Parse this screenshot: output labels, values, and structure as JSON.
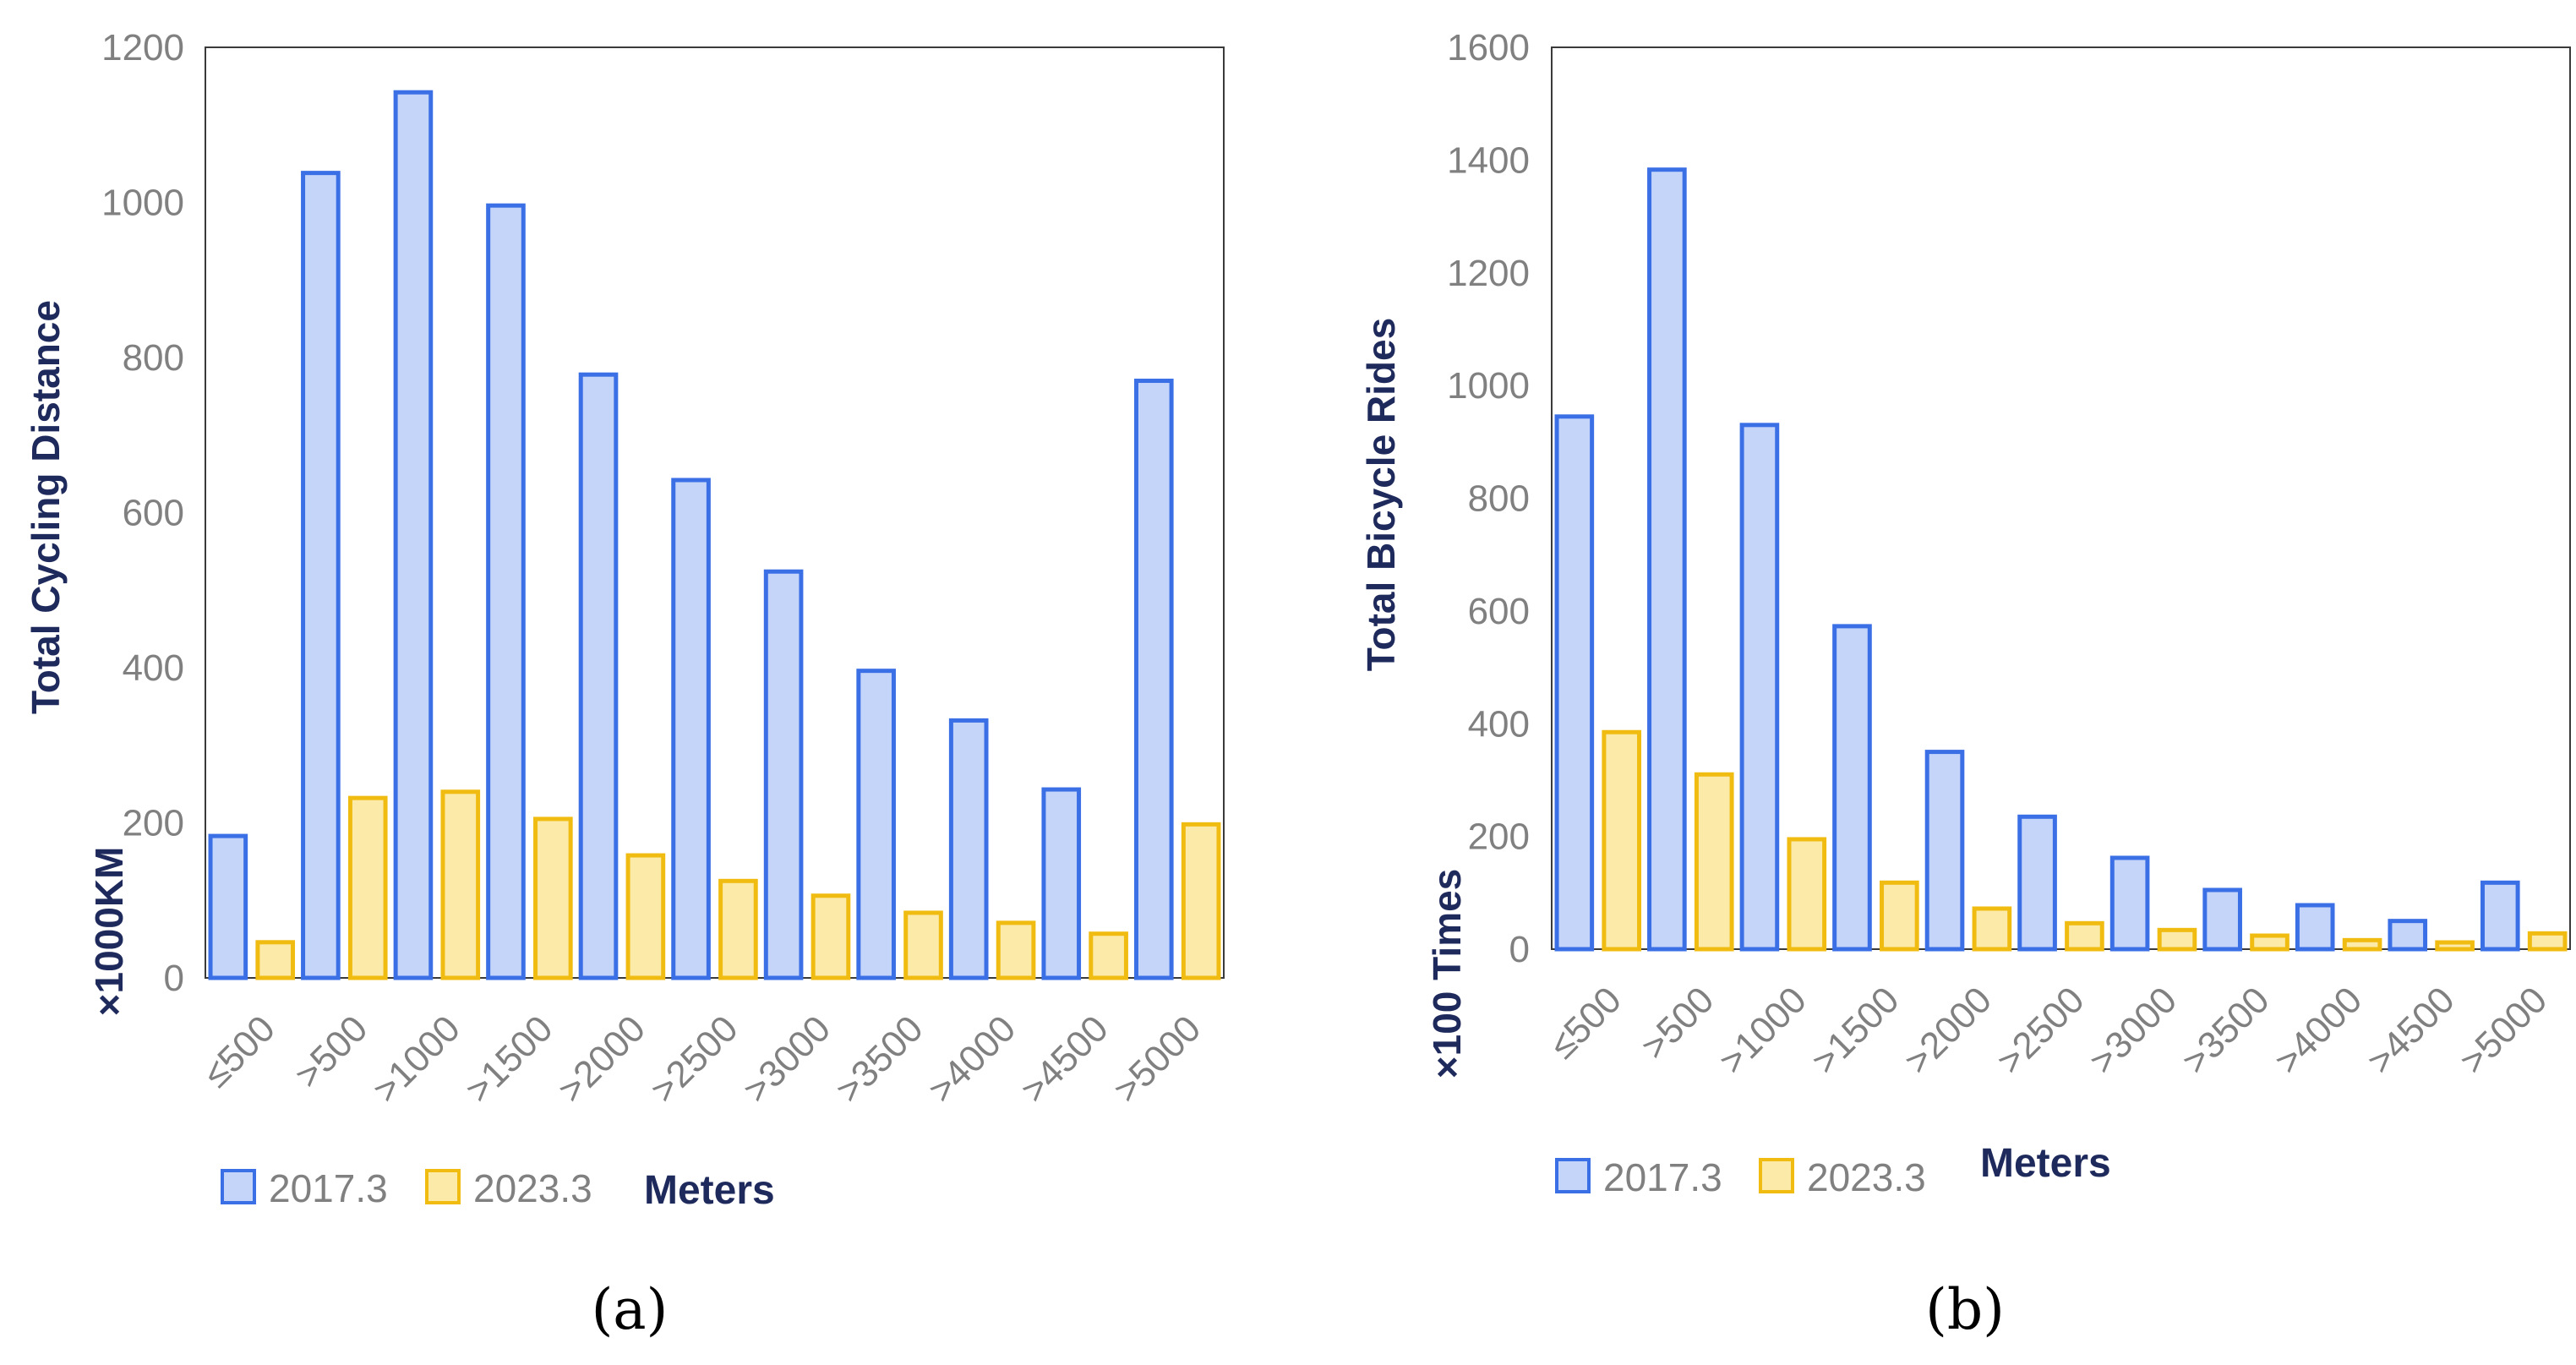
{
  "colors": {
    "series_2017_fill": "#c5d5fa",
    "series_2017_stroke": "#3b6fe6",
    "series_2023_fill": "#fbeaa8",
    "series_2023_stroke": "#f0bc12",
    "tick_text": "#808080",
    "axis_title": "#1f2a5c"
  },
  "chart_data": [
    {
      "type": "bar",
      "panel_label": "(a)",
      "categories": [
        "≤500",
        ">500",
        ">1000",
        ">1500",
        ">2000",
        ">2500",
        ">3000",
        ">3500",
        ">4000",
        ">4500",
        ">5000"
      ],
      "series": [
        {
          "name": "2017.3",
          "values": [
            183,
            1038,
            1142,
            996,
            778,
            642,
            524,
            396,
            332,
            243,
            770
          ]
        },
        {
          "name": "2023.3",
          "values": [
            46,
            232,
            240,
            205,
            158,
            125,
            106,
            84,
            71,
            57,
            198
          ]
        }
      ],
      "yticks": [
        "0",
        "200",
        "400",
        "600",
        "800",
        "1000",
        "1200"
      ],
      "ylim": [
        0,
        1200
      ],
      "ylabel": "Total Cycling Distance",
      "yunit": "×1000KM",
      "xlabel": "Meters",
      "legend": [
        "2017.3",
        "2023.3"
      ]
    },
    {
      "type": "bar",
      "panel_label": "(b)",
      "categories": [
        "≤500",
        ">500",
        ">1000",
        ">1500",
        ">2000",
        ">2500",
        ">3000",
        ">3500",
        ">4000",
        ">4500",
        ">5000"
      ],
      "series": [
        {
          "name": "2017.3",
          "values": [
            945,
            1383,
            930,
            573,
            350,
            235,
            162,
            105,
            78,
            50,
            118
          ]
        },
        {
          "name": "2023.3",
          "values": [
            385,
            310,
            195,
            118,
            72,
            46,
            34,
            24,
            16,
            12,
            28
          ]
        }
      ],
      "yticks": [
        "0",
        "200",
        "400",
        "600",
        "800",
        "1000",
        "1200",
        "1400",
        "1600"
      ],
      "ylim": [
        0,
        1600
      ],
      "ylabel": "Total Bicycle Rides",
      "yunit": "×100 Times",
      "xlabel": "Meters",
      "legend": [
        "2017.3",
        "2023.3"
      ]
    }
  ]
}
